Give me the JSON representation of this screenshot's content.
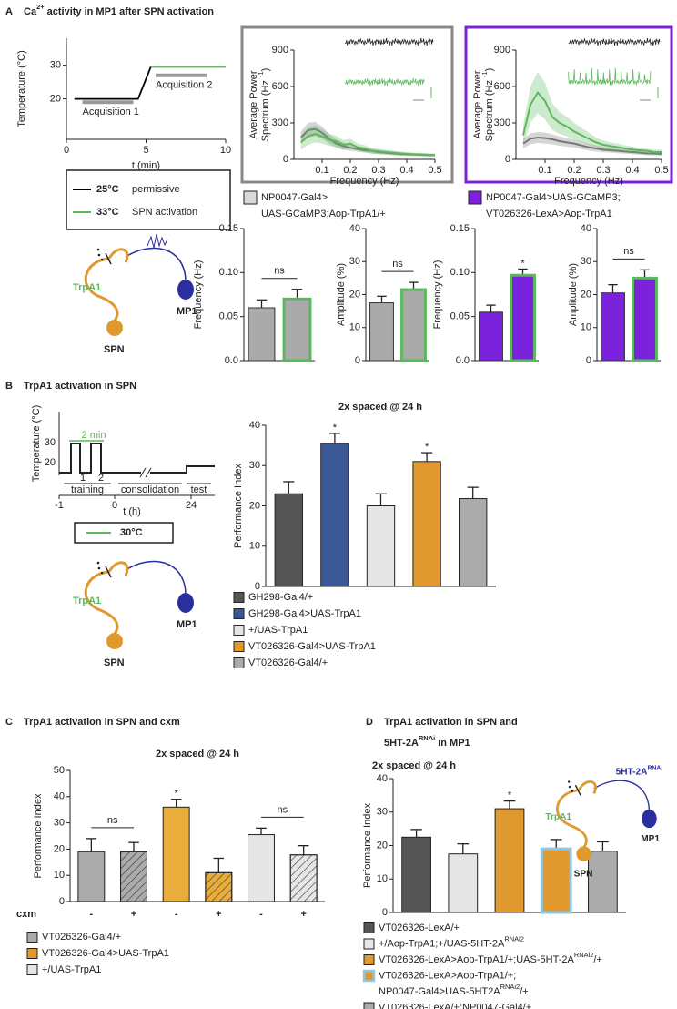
{
  "panels": [
    {
      "letter": "A",
      "title": [
        "Ca",
        "2+",
        " activity in MP1 after SPN activation"
      ]
    },
    {
      "letter": "B",
      "title": [
        "TrpA1 activation in SPN"
      ]
    },
    {
      "letter": "C",
      "title": [
        "TrpA1 activation in SPN and cxm"
      ]
    },
    {
      "letter": "D",
      "title": [
        "TrpA1 activation in SPN and"
      ],
      "title2": [
        "5HT-2A",
        "RNAi",
        " in MP1"
      ]
    }
  ],
  "diagrams": [
    {
      "trpa1": "TrpA1",
      "mp1": "MP1",
      "spn": "SPN"
    },
    {
      "trpa1": "TrpA1",
      "mp1": "MP1",
      "spn": "SPN"
    },
    {
      "trpa1": "TrpA1",
      "mp1": "MP1",
      "spn": "SPN",
      "target": [
        "5HT-2A",
        "RNAi"
      ]
    }
  ],
  "protocol": {
    "ylabel": "Temperature (°C)",
    "yticks": [
      "30",
      "20"
    ],
    "pulse_label": "2 min",
    "pulses": [
      "1",
      "2"
    ],
    "phases": [
      "training",
      "consolidation",
      "test"
    ],
    "xticks": [
      "-1",
      "0",
      "24"
    ],
    "xlabel": "t (h)",
    "legend": "30°C"
  },
  "chart_data": [
    {
      "type": "line",
      "xlabel": "t (min)",
      "ylabel": "Temperature (°C)",
      "xlim": [
        0,
        10
      ],
      "xticks": [
        0,
        5,
        10
      ],
      "ylim": [
        8,
        38
      ],
      "yticks": [
        20,
        30
      ],
      "series": [
        {
          "name": "25°C",
          "description": "permissive",
          "color": "#000000",
          "x": [
            0.5,
            4.5,
            5.3
          ],
          "y": [
            20,
            20,
            29.5
          ]
        },
        {
          "name": "33°C",
          "description": "SPN activation",
          "color": "#5cb85c",
          "x": [
            5.3,
            10
          ],
          "y": [
            29.5,
            29.5
          ]
        }
      ],
      "spans": [
        {
          "label": "Acquisition 1",
          "x": [
            1,
            4.2
          ],
          "y": 19,
          "color": "#999999"
        },
        {
          "label": "Acquisition 2",
          "x": [
            5.6,
            8.8
          ],
          "y": 27,
          "color": "#999999"
        }
      ]
    },
    {
      "type": "spectrum",
      "frame_color": "#888888",
      "xlabel": "Frequency (Hz)",
      "ylabel": "Average Power",
      "ylabel2": [
        "Spectrum (Hz ",
        "-1",
        ")"
      ],
      "xlim": [
        0,
        0.5
      ],
      "xticks": [
        0.1,
        0.2,
        0.3,
        0.4,
        0.5
      ],
      "ylim": [
        0,
        900
      ],
      "yticks": [
        0,
        300,
        600,
        900
      ],
      "x": [
        0.025,
        0.05,
        0.075,
        0.1,
        0.125,
        0.15,
        0.175,
        0.2,
        0.225,
        0.25,
        0.275,
        0.3,
        0.325,
        0.35,
        0.375,
        0.4,
        0.425,
        0.45,
        0.475,
        0.5
      ],
      "series": [
        {
          "color": "#777777",
          "values": [
            180,
            240,
            250,
            220,
            170,
            130,
            110,
            95,
            85,
            75,
            70,
            60,
            55,
            50,
            45,
            42,
            40,
            38,
            35,
            35
          ],
          "errors": [
            50,
            60,
            60,
            50,
            40,
            35,
            30,
            25,
            22,
            20,
            20,
            18,
            16,
            15,
            14,
            13,
            12,
            12,
            11,
            11
          ]
        },
        {
          "color": "#5cb85c",
          "values": [
            140,
            190,
            210,
            190,
            160,
            150,
            120,
            130,
            100,
            90,
            70,
            65,
            60,
            55,
            50,
            45,
            42,
            40,
            38,
            36
          ],
          "errors": [
            60,
            70,
            70,
            60,
            50,
            45,
            40,
            40,
            30,
            28,
            24,
            22,
            20,
            18,
            16,
            15,
            14,
            13,
            12,
            12
          ]
        }
      ]
    },
    {
      "type": "spectrum",
      "frame_color": "#7b22dd",
      "xlabel": "Frequency (Hz)",
      "ylabel": "Average Power",
      "ylabel2": [
        "Spectrum (Hz ",
        "-1",
        ")"
      ],
      "xlim": [
        0,
        0.5
      ],
      "xticks": [
        0.1,
        0.2,
        0.3,
        0.4,
        0.5
      ],
      "ylim": [
        0,
        900
      ],
      "yticks": [
        0,
        300,
        600,
        900
      ],
      "x": [
        0.025,
        0.05,
        0.075,
        0.1,
        0.125,
        0.15,
        0.175,
        0.2,
        0.225,
        0.25,
        0.275,
        0.3,
        0.325,
        0.35,
        0.375,
        0.4,
        0.425,
        0.45,
        0.475,
        0.5
      ],
      "series": [
        {
          "color": "#777777",
          "values": [
            130,
            170,
            180,
            175,
            165,
            150,
            140,
            130,
            115,
            100,
            90,
            80,
            75,
            70,
            65,
            60,
            55,
            50,
            48,
            45
          ],
          "errors": [
            40,
            45,
            45,
            45,
            40,
            38,
            35,
            32,
            30,
            28,
            25,
            22,
            20,
            20,
            18,
            18,
            16,
            15,
            15,
            14
          ]
        },
        {
          "color": "#5cb85c",
          "values": [
            200,
            450,
            550,
            480,
            350,
            300,
            270,
            230,
            200,
            170,
            140,
            120,
            110,
            100,
            90,
            80,
            75,
            70,
            60,
            60
          ],
          "errors": [
            80,
            150,
            170,
            150,
            110,
            90,
            80,
            70,
            60,
            50,
            40,
            35,
            30,
            30,
            25,
            25,
            20,
            20,
            20,
            20
          ]
        }
      ]
    },
    {
      "type": "bar",
      "ylabel": "Frequency (Hz)",
      "ylim": [
        0,
        0.15
      ],
      "yticks": [
        {
          "value": 0,
          "label": "0.0"
        },
        0.05,
        {
          "value": 0.1,
          "label": "0.10"
        },
        0.15
      ],
      "values": [
        0.06,
        0.07
      ],
      "errors": [
        0.009,
        0.011
      ],
      "colors": [
        "#aaaaaa",
        "#aaaaaa"
      ],
      "edgecolors": [
        "#333333",
        "#5cb85c"
      ],
      "annotations": [
        {
          "text": "ns",
          "bars": [
            0,
            1
          ]
        }
      ],
      "legend": [
        {
          "color": "#d9d9d9",
          "lines": [
            "NP0047-Gal4>",
            "UAS-GCaMP3;Aop-TrpA1/+"
          ]
        }
      ]
    },
    {
      "type": "bar",
      "ylabel": "Amplitude (%)",
      "ylim": [
        0,
        40
      ],
      "yticks": [
        0,
        10,
        20,
        30,
        40
      ],
      "values": [
        17.5,
        21.5
      ],
      "errors": [
        2,
        2.2
      ],
      "colors": [
        "#aaaaaa",
        "#aaaaaa"
      ],
      "edgecolors": [
        "#333333",
        "#5cb85c"
      ],
      "annotations": [
        {
          "text": "ns",
          "bars": [
            0,
            1
          ]
        }
      ]
    },
    {
      "type": "bar",
      "ylabel": "Frequency (Hz)",
      "ylim": [
        0,
        0.15
      ],
      "yticks": [
        {
          "value": 0,
          "label": "0.0"
        },
        0.05,
        {
          "value": 0.1,
          "label": "0.10"
        },
        0.15
      ],
      "values": [
        0.055,
        0.097
      ],
      "errors": [
        0.008,
        0.007
      ],
      "colors": [
        "#7b22dd",
        "#7b22dd"
      ],
      "edgecolors": [
        "#333333",
        "#5cb85c"
      ],
      "annotations": [
        {
          "text": "*",
          "bars": [
            1
          ]
        }
      ],
      "legend": [
        {
          "color": "#7b22dd",
          "lines": [
            "NP0047-Gal4>UAS-GCaMP3;",
            "VT026326-LexA>Aop-TrpA1"
          ]
        }
      ]
    },
    {
      "type": "bar",
      "ylabel": "Amplitude (%)",
      "ylim": [
        0,
        40
      ],
      "yticks": [
        0,
        10,
        20,
        30,
        40
      ],
      "values": [
        20.5,
        25
      ],
      "errors": [
        2.5,
        2.5
      ],
      "colors": [
        "#7b22dd",
        "#7b22dd"
      ],
      "edgecolors": [
        "#333333",
        "#5cb85c"
      ],
      "annotations": [
        {
          "text": "ns",
          "bars": [
            0,
            1
          ]
        }
      ]
    },
    {
      "type": "bar",
      "title": "2x spaced @ 24 h",
      "ylabel": "Performance Index",
      "ylim": [
        0,
        40
      ],
      "yticks": [
        0,
        10,
        20,
        30,
        40
      ],
      "values": [
        23,
        35.5,
        20,
        31,
        21.8
      ],
      "errors": [
        3,
        2.5,
        3,
        2.2,
        2.8
      ],
      "colors": [
        "#555555",
        "#3a5896",
        "#e6e6e6",
        "#e0992f",
        "#ababab"
      ],
      "annotations": [
        {
          "text": "*",
          "bars": [
            1
          ]
        },
        {
          "text": "*",
          "bars": [
            3
          ]
        }
      ],
      "legend": [
        {
          "color": "#555555",
          "lines": [
            "GH298-Gal4/+"
          ]
        },
        {
          "color": "#3a5896",
          "lines": [
            "GH298-Gal4>UAS-TrpA1"
          ]
        },
        {
          "color": "#e6e6e6",
          "lines": [
            "+/UAS-TrpA1"
          ]
        },
        {
          "color": "#e0992f",
          "lines": [
            "VT026326-Gal4>UAS-TrpA1"
          ]
        },
        {
          "color": "#ababab",
          "lines": [
            "VT026326-Gal4/+"
          ]
        }
      ]
    },
    {
      "type": "bar",
      "title": "2x spaced @ 24 h",
      "ylabel": "Performance Index",
      "ylim": [
        0,
        50
      ],
      "yticks": [
        0,
        10,
        20,
        30,
        40,
        50
      ],
      "xlabel": "cxm",
      "categories": [
        "-",
        "+",
        "-",
        "+",
        "-",
        "+"
      ],
      "values": [
        19,
        19,
        36,
        11,
        25.5,
        17.8
      ],
      "errors": [
        5,
        3.5,
        3,
        5.5,
        2.5,
        3.5
      ],
      "colors": [
        "#ababab",
        "#ababab",
        "#e8ad3a",
        "#e8ad3a",
        "#e6e6e6",
        "#e6e6e6"
      ],
      "hatch": [
        false,
        true,
        false,
        true,
        false,
        true
      ],
      "annotations": [
        {
          "text": "ns",
          "bars": [
            0,
            1
          ]
        },
        {
          "text": "*",
          "bars": [
            2
          ]
        },
        {
          "text": "ns",
          "bars": [
            4,
            5
          ]
        }
      ],
      "legend": [
        {
          "color": "#ababab",
          "lines": [
            "VT026326-Gal4/+"
          ]
        },
        {
          "color": "#e0992f",
          "lines": [
            "VT026326-Gal4>UAS-TrpA1"
          ]
        },
        {
          "color": "#e6e6e6",
          "lines": [
            "+/UAS-TrpA1"
          ]
        }
      ]
    },
    {
      "type": "bar",
      "title": "2x spaced @ 24 h",
      "ylabel": "Performance Index",
      "ylim": [
        0,
        40
      ],
      "yticks": [
        0,
        10,
        20,
        30,
        40
      ],
      "values": [
        22.5,
        17.5,
        31,
        19,
        18.3
      ],
      "errors": [
        2.3,
        3,
        2.3,
        2.8,
        2.8
      ],
      "colors": [
        "#555555",
        "#e6e6e6",
        "#e0992f",
        "#e0992f",
        "#ababab"
      ],
      "edgecolors": [
        "#222222",
        "#222222",
        "#222222",
        "#8fc7e8",
        "#222222"
      ],
      "annotations": [
        {
          "text": "*",
          "bars": [
            2
          ]
        }
      ],
      "legend": [
        {
          "color": "#555555",
          "lines": [
            "VT026326-LexA/+"
          ]
        },
        {
          "color": "#e6e6e6",
          "lines": [
            [
              "+/Aop-TrpA1;+/UAS-5HT-2A",
              "RNAi2"
            ]
          ]
        },
        {
          "color": "#e0992f",
          "lines": [
            [
              "VT026326-LexA>Aop-TrpA1/+;UAS-5HT-2A",
              "RNAi2",
              "/+"
            ]
          ]
        },
        {
          "color": "#e0992f",
          "edgecolor": "#8fc7e8",
          "lines": [
            "VT026326-LexA>Aop-TrpA1/+;",
            [
              "NP0047-Gal4>UAS-5HT2A",
              "RNAi2",
              "/+"
            ]
          ]
        },
        {
          "color": "#ababab",
          "lines": [
            "VT026326-LexA/+;NP0047-Gal4/+"
          ]
        }
      ]
    }
  ]
}
